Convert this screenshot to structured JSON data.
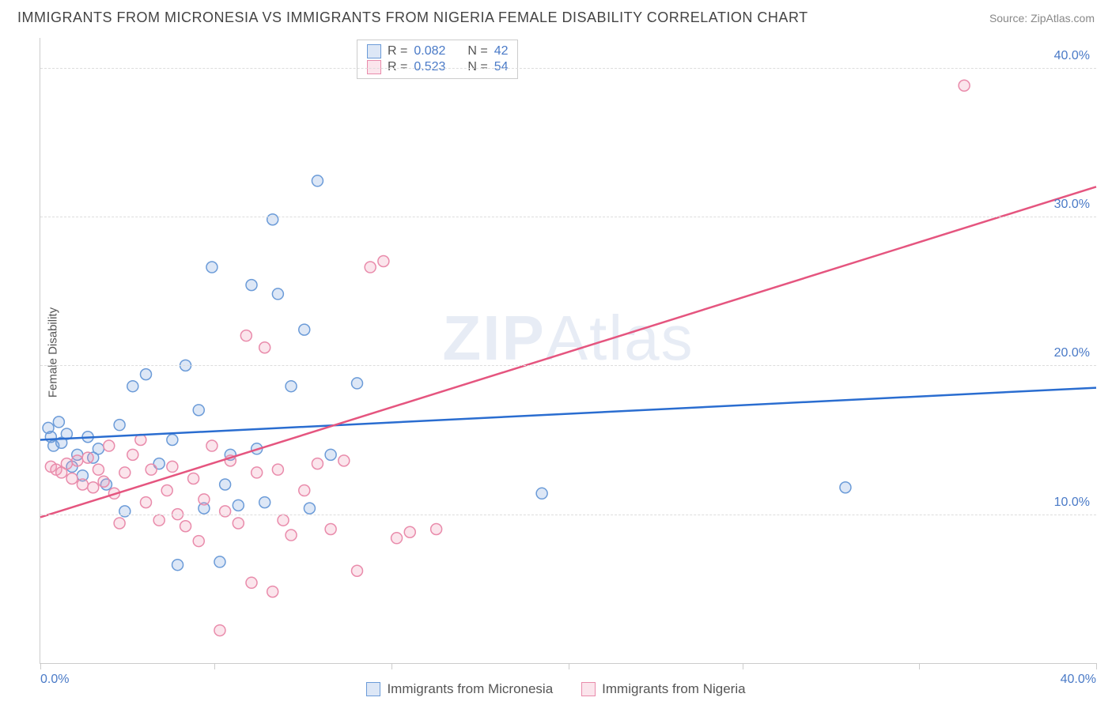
{
  "title": "IMMIGRANTS FROM MICRONESIA VS IMMIGRANTS FROM NIGERIA FEMALE DISABILITY CORRELATION CHART",
  "source": "Source: ZipAtlas.com",
  "y_axis_label": "Female Disability",
  "watermark": "ZIPAtlas",
  "chart": {
    "type": "scatter",
    "xlim": [
      0,
      40
    ],
    "ylim": [
      0,
      42
    ],
    "x_ticks": [
      0,
      6.6,
      13.3,
      20,
      26.6,
      33.3,
      40
    ],
    "y_grid_lines": [
      10,
      20,
      30,
      40
    ],
    "y_tick_labels": [
      "10.0%",
      "20.0%",
      "30.0%",
      "40.0%"
    ],
    "x_left_label": "0.0%",
    "x_right_label": "40.0%",
    "background_color": "#ffffff",
    "grid_color": "#dddddd",
    "marker_radius": 7,
    "marker_stroke_width": 1.5,
    "line_width": 2.5
  },
  "series": [
    {
      "name": "Immigrants from Micronesia",
      "fill": "rgba(120,160,220,0.25)",
      "stroke": "#6b9bd8",
      "line_color": "#2a6dd0",
      "r": "0.082",
      "n": "42",
      "regression": {
        "x1": 0,
        "y1": 15.0,
        "x2": 40,
        "y2": 18.5
      },
      "points": [
        [
          0.3,
          15.8
        ],
        [
          0.4,
          15.2
        ],
        [
          0.5,
          14.6
        ],
        [
          0.7,
          16.2
        ],
        [
          0.8,
          14.8
        ],
        [
          1.0,
          15.4
        ],
        [
          1.2,
          13.2
        ],
        [
          1.4,
          14.0
        ],
        [
          1.6,
          12.6
        ],
        [
          1.8,
          15.2
        ],
        [
          2.0,
          13.8
        ],
        [
          2.2,
          14.4
        ],
        [
          2.5,
          12.0
        ],
        [
          3.0,
          16.0
        ],
        [
          3.2,
          10.2
        ],
        [
          3.5,
          18.6
        ],
        [
          4.0,
          19.4
        ],
        [
          4.5,
          13.4
        ],
        [
          5.0,
          15.0
        ],
        [
          5.2,
          6.6
        ],
        [
          5.5,
          20.0
        ],
        [
          6.0,
          17.0
        ],
        [
          6.2,
          10.4
        ],
        [
          6.5,
          26.6
        ],
        [
          6.8,
          6.8
        ],
        [
          7.0,
          12.0
        ],
        [
          7.2,
          14.0
        ],
        [
          7.5,
          10.6
        ],
        [
          8.0,
          25.4
        ],
        [
          8.2,
          14.4
        ],
        [
          8.5,
          10.8
        ],
        [
          8.8,
          29.8
        ],
        [
          9.0,
          24.8
        ],
        [
          9.5,
          18.6
        ],
        [
          10.0,
          22.4
        ],
        [
          10.2,
          10.4
        ],
        [
          10.5,
          32.4
        ],
        [
          11.0,
          14.0
        ],
        [
          12.0,
          18.8
        ],
        [
          19.0,
          11.4
        ],
        [
          30.5,
          11.8
        ]
      ]
    },
    {
      "name": "Immigrants from Nigeria",
      "fill": "rgba(240,150,180,0.25)",
      "stroke": "#e98bab",
      "line_color": "#e5557f",
      "r": "0.523",
      "n": "54",
      "regression": {
        "x1": 0,
        "y1": 9.8,
        "x2": 40,
        "y2": 32.0
      },
      "points": [
        [
          0.4,
          13.2
        ],
        [
          0.6,
          13.0
        ],
        [
          0.8,
          12.8
        ],
        [
          1.0,
          13.4
        ],
        [
          1.2,
          12.4
        ],
        [
          1.4,
          13.6
        ],
        [
          1.6,
          12.0
        ],
        [
          1.8,
          13.8
        ],
        [
          2.0,
          11.8
        ],
        [
          2.2,
          13.0
        ],
        [
          2.4,
          12.2
        ],
        [
          2.6,
          14.6
        ],
        [
          2.8,
          11.4
        ],
        [
          3.0,
          9.4
        ],
        [
          3.2,
          12.8
        ],
        [
          3.5,
          14.0
        ],
        [
          3.8,
          15.0
        ],
        [
          4.0,
          10.8
        ],
        [
          4.2,
          13.0
        ],
        [
          4.5,
          9.6
        ],
        [
          4.8,
          11.6
        ],
        [
          5.0,
          13.2
        ],
        [
          5.2,
          10.0
        ],
        [
          5.5,
          9.2
        ],
        [
          5.8,
          12.4
        ],
        [
          6.0,
          8.2
        ],
        [
          6.2,
          11.0
        ],
        [
          6.5,
          14.6
        ],
        [
          6.8,
          2.2
        ],
        [
          7.0,
          10.2
        ],
        [
          7.2,
          13.6
        ],
        [
          7.5,
          9.4
        ],
        [
          7.8,
          22.0
        ],
        [
          8.0,
          5.4
        ],
        [
          8.2,
          12.8
        ],
        [
          8.5,
          21.2
        ],
        [
          8.8,
          4.8
        ],
        [
          9.0,
          13.0
        ],
        [
          9.2,
          9.6
        ],
        [
          9.5,
          8.6
        ],
        [
          10.0,
          11.6
        ],
        [
          10.5,
          13.4
        ],
        [
          11.0,
          9.0
        ],
        [
          11.5,
          13.6
        ],
        [
          12.0,
          6.2
        ],
        [
          12.5,
          26.6
        ],
        [
          13.0,
          27.0
        ],
        [
          13.5,
          8.4
        ],
        [
          14.0,
          8.8
        ],
        [
          15.0,
          9.0
        ],
        [
          35.0,
          38.8
        ]
      ]
    }
  ],
  "stats_legend_labels": {
    "r": "R =",
    "n": "N ="
  },
  "bottom_legend": {
    "s1": "Immigrants from Micronesia",
    "s2": "Immigrants from Nigeria"
  }
}
